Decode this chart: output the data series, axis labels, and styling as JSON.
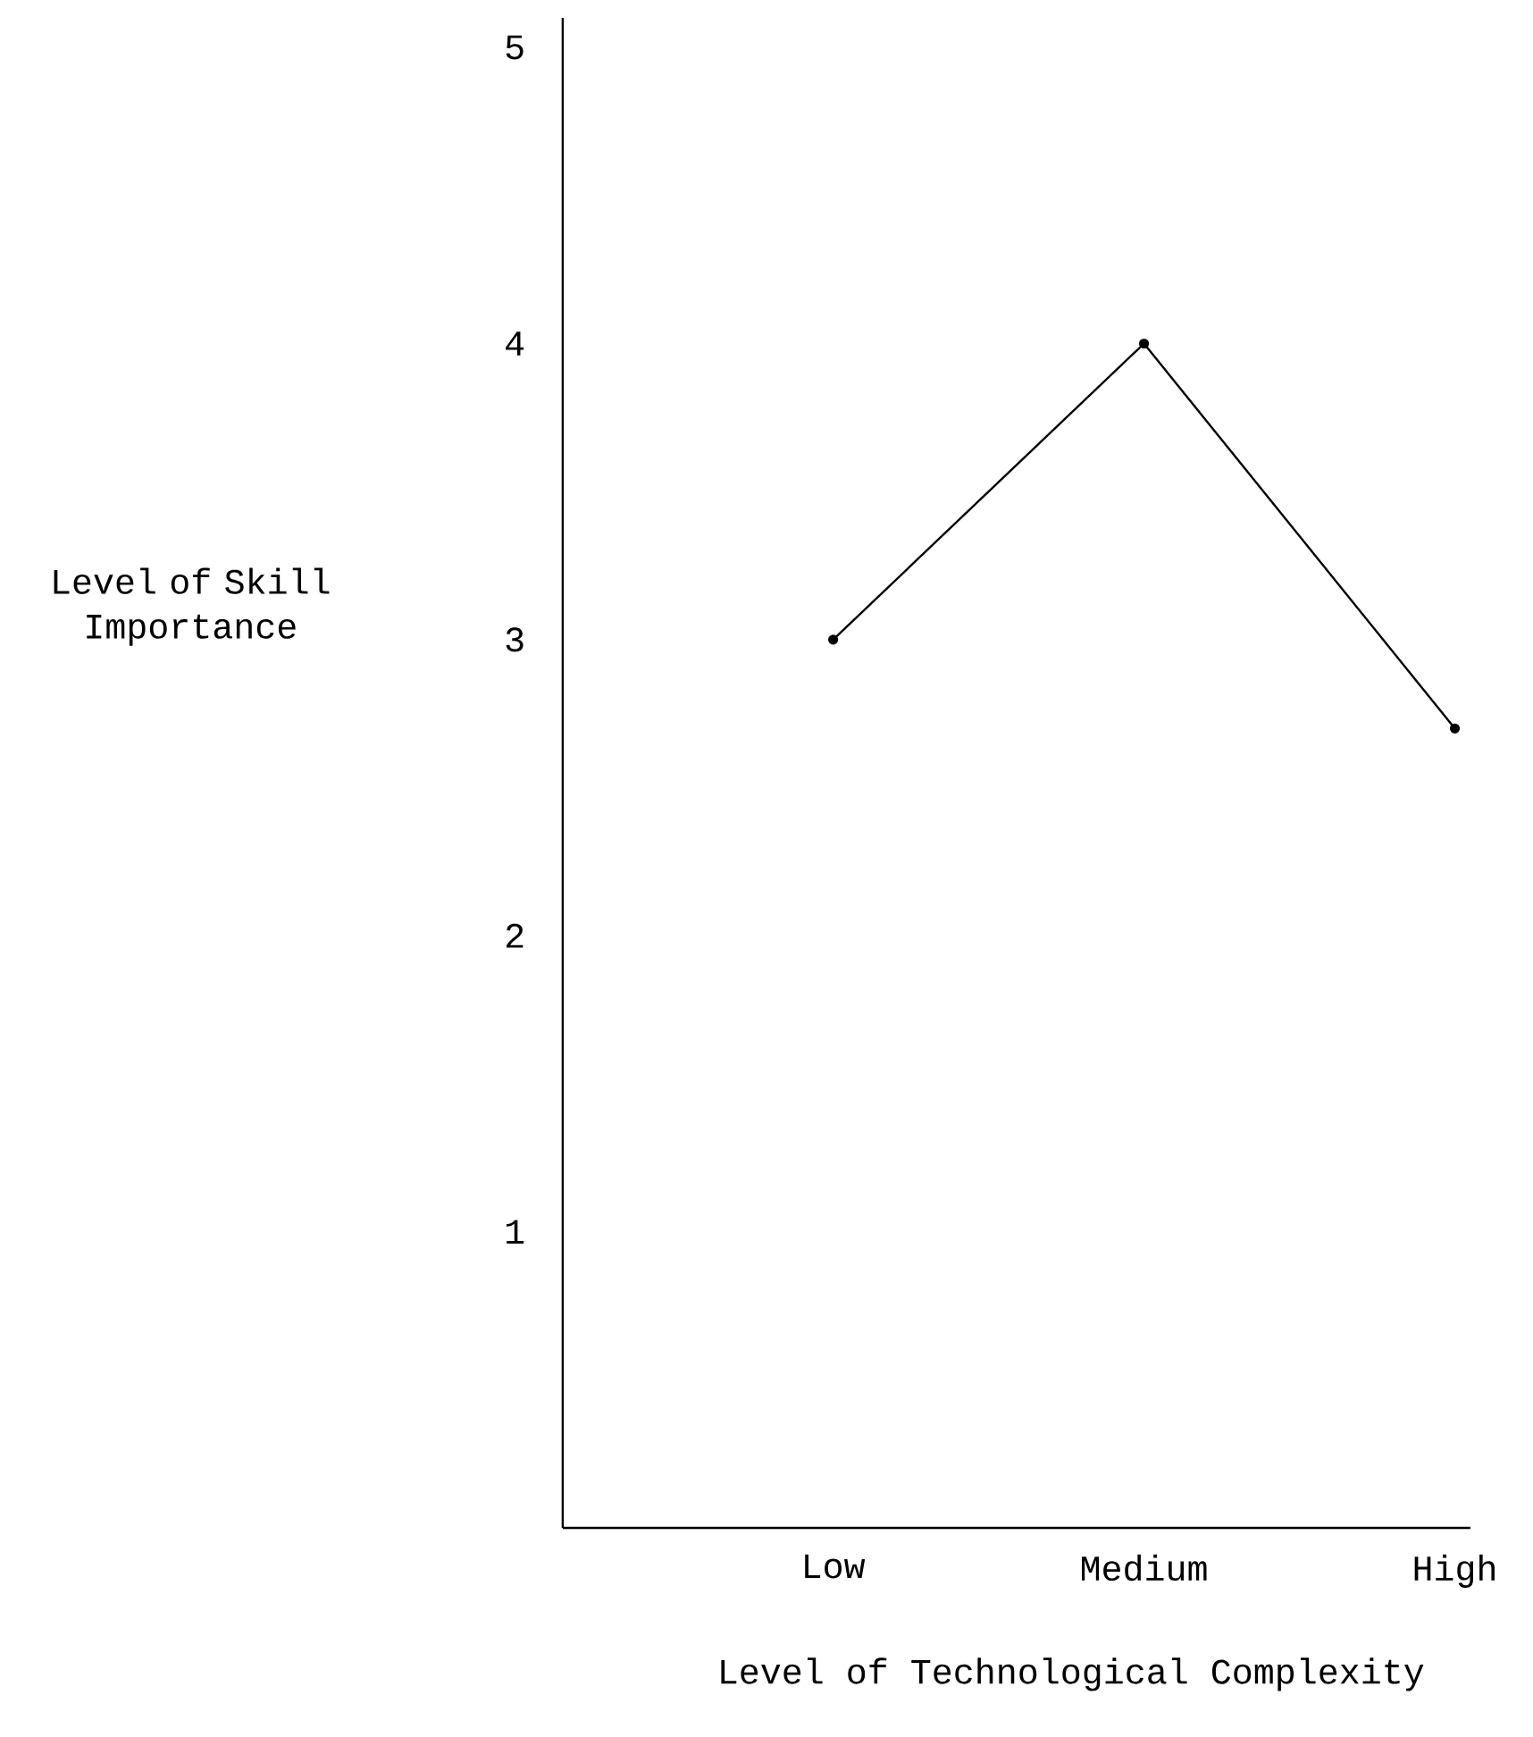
{
  "chart_data": {
    "type": "line",
    "xlabel": "Level of Technological Complexity",
    "ylabel": "Level of Skill Importance",
    "categories": [
      "Low",
      "Medium",
      "High"
    ],
    "values": [
      3.0,
      4.0,
      2.7
    ],
    "color": "#000000",
    "marker": "circle",
    "line_style": "solid",
    "ylim": [
      0,
      5.1
    ],
    "yticks": [
      1,
      2,
      3,
      4,
      5
    ],
    "grid": false
  }
}
